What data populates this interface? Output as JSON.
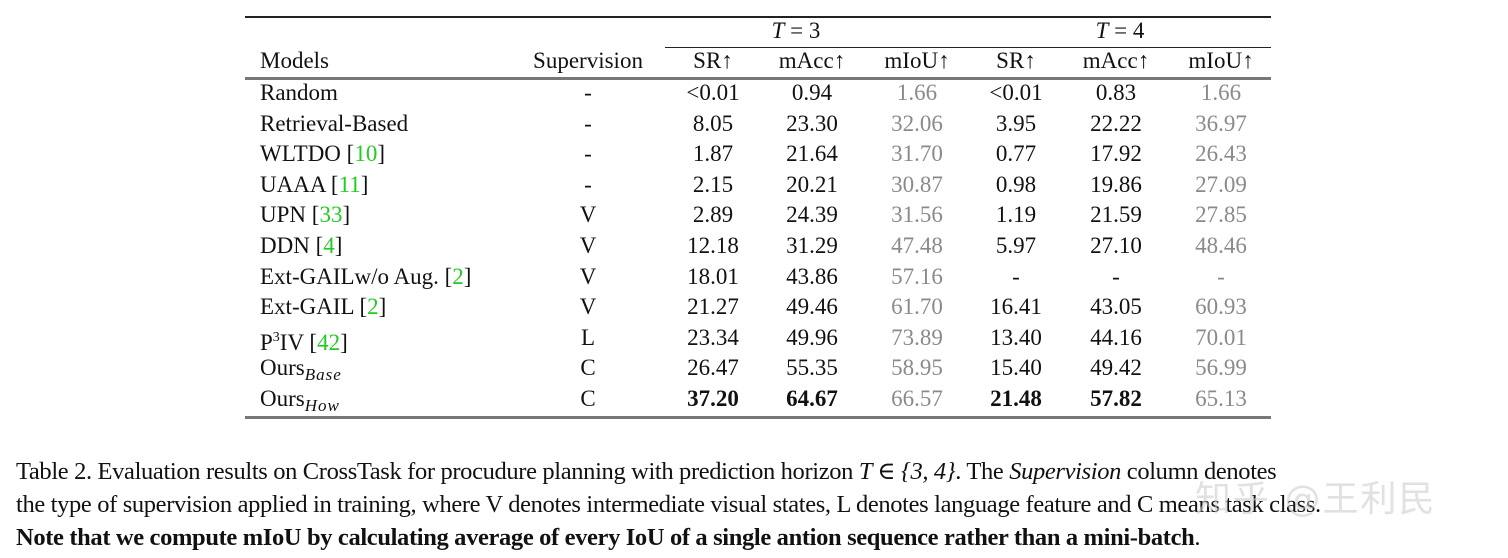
{
  "table": {
    "group_headers": [
      {
        "label": "T = 3",
        "var": "T",
        "rest": " = 3"
      },
      {
        "label": "T = 4",
        "var": "T",
        "rest": " = 4"
      }
    ],
    "columns": [
      "Models",
      "Supervision",
      "SR↑",
      "mAcc↑",
      "mIoU↑",
      "SR↑",
      "mAcc↑",
      "mIoU↑"
    ],
    "rows": [
      {
        "model": "Random",
        "ref": "",
        "sup": "-",
        "t3": [
          "<0.01",
          "0.94",
          "1.66"
        ],
        "t4": [
          "<0.01",
          "0.83",
          "1.66"
        ]
      },
      {
        "model": "Retrieval-Based",
        "ref": "",
        "sup": "-",
        "t3": [
          "8.05",
          "23.30",
          "32.06"
        ],
        "t4": [
          "3.95",
          "22.22",
          "36.97"
        ]
      },
      {
        "model": "WLTDO",
        "ref": "10",
        "sup": "-",
        "t3": [
          "1.87",
          "21.64",
          "31.70"
        ],
        "t4": [
          "0.77",
          "17.92",
          "26.43"
        ]
      },
      {
        "model": "UAAA",
        "ref": "11",
        "sup": "-",
        "t3": [
          "2.15",
          "20.21",
          "30.87"
        ],
        "t4": [
          "0.98",
          "19.86",
          "27.09"
        ]
      },
      {
        "model": "UPN",
        "ref": "33",
        "sup": "V",
        "t3": [
          "2.89",
          "24.39",
          "31.56"
        ],
        "t4": [
          "1.19",
          "21.59",
          "27.85"
        ]
      },
      {
        "model": "DDN",
        "ref": "4",
        "sup": "V",
        "t3": [
          "12.18",
          "31.29",
          "47.48"
        ],
        "t4": [
          "5.97",
          "27.10",
          "48.46"
        ]
      },
      {
        "model": "Ext-GAILw/o Aug.",
        "ref": "2",
        "sup": "V",
        "t3": [
          "18.01",
          "43.86",
          "57.16"
        ],
        "t4": [
          "-",
          "-",
          "-"
        ]
      },
      {
        "model": "Ext-GAIL",
        "ref": "2",
        "sup": "V",
        "t3": [
          "21.27",
          "49.46",
          "61.70"
        ],
        "t4": [
          "16.41",
          "43.05",
          "60.93"
        ]
      },
      {
        "model": "P",
        "model_sup": "3",
        "model_tail": "IV",
        "ref": "42",
        "sup": "L",
        "t3": [
          "23.34",
          "49.96",
          "73.89"
        ],
        "t4": [
          "13.40",
          "44.16",
          "70.01"
        ]
      },
      {
        "model": "Ours",
        "model_sub": "Base",
        "ref": "",
        "sup": "C",
        "t3": [
          "26.47",
          "55.35",
          "58.95"
        ],
        "t4": [
          "15.40",
          "49.42",
          "56.99"
        ]
      },
      {
        "model": "Ours",
        "model_sub": "How",
        "ref": "",
        "sup": "C",
        "t3": [
          "37.20",
          "64.67",
          "66.57"
        ],
        "t4": [
          "21.48",
          "57.82",
          "65.13"
        ],
        "bold": [
          true,
          true,
          false,
          true,
          true,
          false
        ]
      }
    ]
  },
  "caption": {
    "line1_a": "Table 2. Evaluation results on CrossTask for procudure planning with prediction horizon ",
    "line1_math": "T ∈ {3, 4}",
    "line1_b": ". The ",
    "line1_ital": "Supervision",
    "line1_c": " column denotes",
    "line2": "the type of supervision applied in training, where V denotes intermediate visual states, L denotes language feature and C means task class.",
    "line3_bold": "Note that we compute mIoU by calculating average of every IoU of a single antion sequence rather than a mini-batch",
    "line3_end": "."
  },
  "watermark": "知乎 @王利民",
  "colors": {
    "reference_link": "#22cc22",
    "miou_gray": "#8a8a8a",
    "rule_gray": "#777777"
  }
}
